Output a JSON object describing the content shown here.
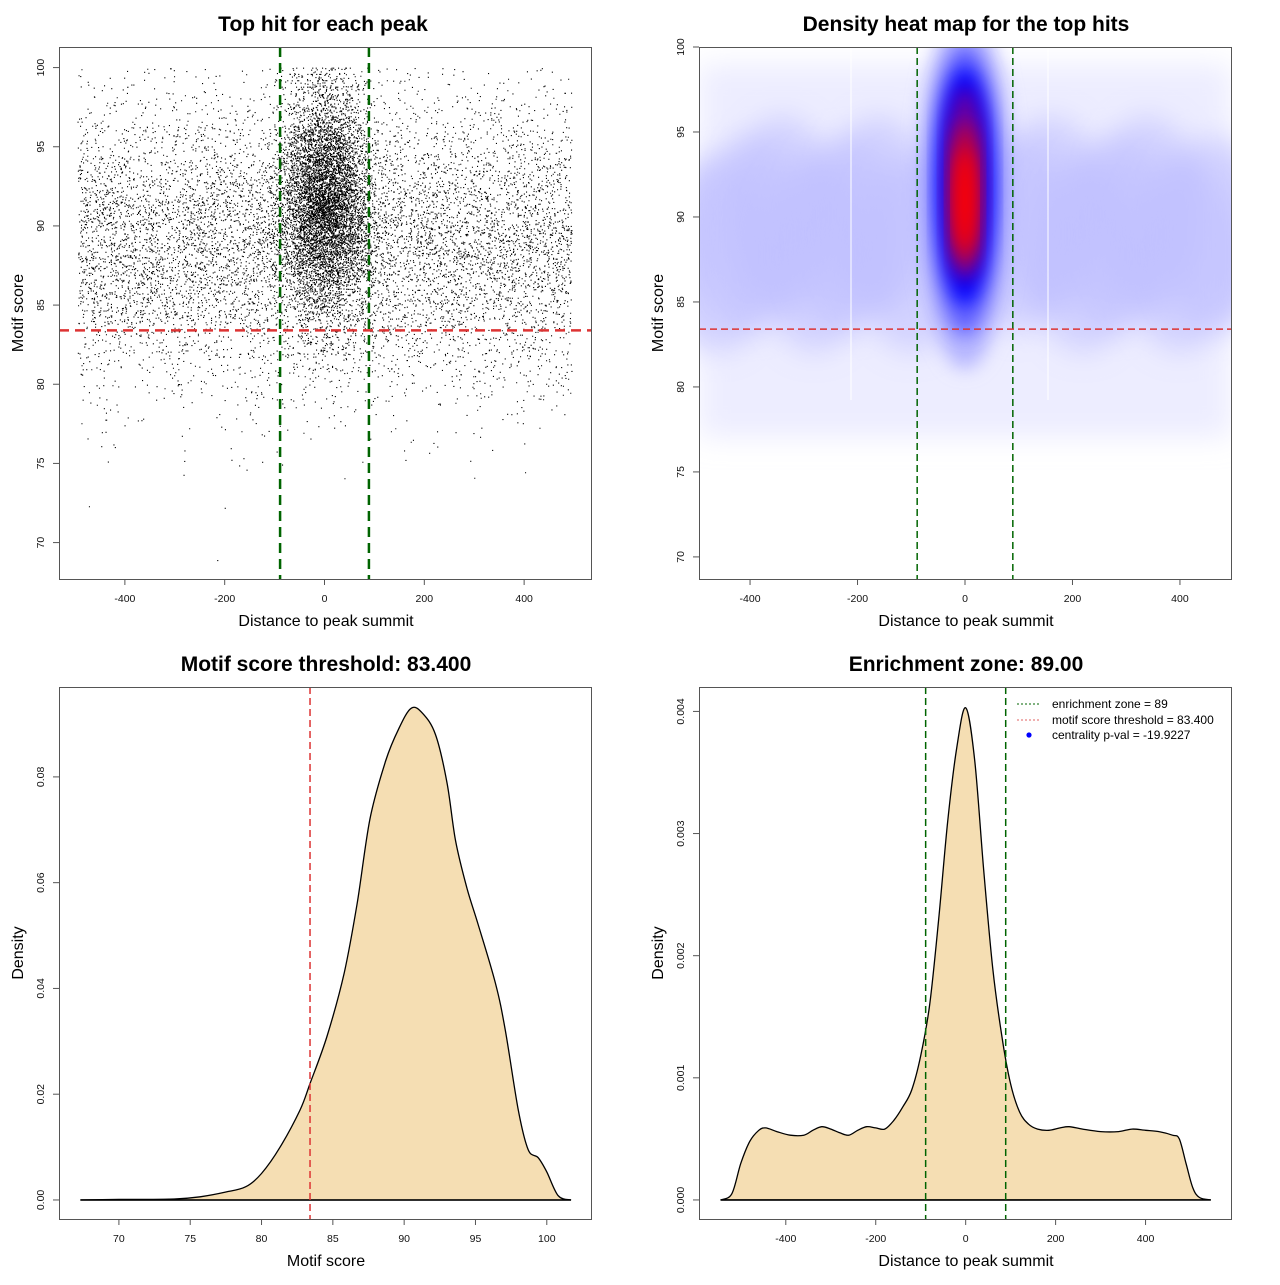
{
  "colors": {
    "green_line": "#006400",
    "red_line": "#dd3333",
    "fill": "#f5deb3",
    "heat_low": "#ffffff",
    "heat_mid": "#0000ff",
    "heat_high": "#ff0000",
    "point": "#000000",
    "legend_dot": "#0000ff"
  },
  "chart_data": [
    {
      "id": "scatter",
      "type": "scatter",
      "title": "Top hit for each peak",
      "xlabel": "Distance to peak summit",
      "ylabel": "Motif score",
      "xlim": [
        -532,
        534
      ],
      "ylim": [
        67.7,
        101.3
      ],
      "xticks": [
        -400,
        -200,
        0,
        200,
        400
      ],
      "xtick_labels": [
        "-400",
        "-200",
        "0",
        "200",
        "400"
      ],
      "yticks": [
        70,
        75,
        80,
        85,
        90,
        95,
        100
      ],
      "ytick_labels": [
        "70",
        "75",
        "80",
        "85",
        "90",
        "95",
        "100"
      ],
      "vlines": [
        -89,
        89
      ],
      "hline": 83.4,
      "point_summary": {
        "x_range": [
          -495,
          495
        ],
        "background_score_mean": 89,
        "background_score_sd": 4.5,
        "central_cluster_x_sd": 45,
        "central_cluster_score_mean": 91.5,
        "central_cluster_score_sd": 3.6,
        "score_max": 100,
        "outliers": [
          [
            -472,
            72.3
          ],
          [
            -200,
            72.2
          ],
          [
            -215,
            68.9
          ],
          [
            300,
            74.1
          ],
          [
            -125,
            75.1
          ]
        ]
      }
    },
    {
      "id": "heatmap",
      "type": "heatmap",
      "title": "Density heat map for the top hits",
      "xlabel": "Distance to peak summit",
      "ylabel": "Motif score",
      "xlim": [
        -495,
        495
      ],
      "ylim": [
        68.7,
        100
      ],
      "xticks": [
        -400,
        -200,
        0,
        200,
        400
      ],
      "xtick_labels": [
        "-400",
        "-200",
        "0",
        "200",
        "400"
      ],
      "yticks": [
        70,
        75,
        80,
        85,
        90,
        95,
        100
      ],
      "ytick_labels": [
        "70",
        "75",
        "80",
        "85",
        "90",
        "95",
        "100"
      ],
      "vlines": [
        -89,
        89
      ],
      "hline": 83.4,
      "hotspot": {
        "x": 0,
        "y": 91,
        "x_sd": 30,
        "y_sd": 3.2
      },
      "background_band": {
        "y_center": 89,
        "y_sd": 5
      },
      "colorscale": [
        "white",
        "blue",
        "red"
      ]
    },
    {
      "id": "score-density",
      "type": "area",
      "title": "Motif score threshold: 83.400",
      "xlabel": "Motif score",
      "ylabel": "Density",
      "xlim": [
        65.8,
        103.1
      ],
      "ylim": [
        -0.0036,
        0.097
      ],
      "xticks": [
        70,
        75,
        80,
        85,
        90,
        95,
        100
      ],
      "xtick_labels": [
        "70",
        "75",
        "80",
        "85",
        "90",
        "95",
        "100"
      ],
      "yticks": [
        0,
        0.02,
        0.04,
        0.06,
        0.08
      ],
      "ytick_labels": [
        "0.00",
        "0.02",
        "0.04",
        "0.06",
        "0.08"
      ],
      "vline": 83.4,
      "x": [
        67.3,
        70,
        72,
        74,
        75.7,
        77.5,
        78.9,
        80.0,
        81.3,
        82.7,
        83.4,
        84.6,
        85.8,
        86.7,
        87.6,
        88.7,
        89.6,
        90.5,
        91.3,
        92.2,
        93.0,
        93.6,
        94.4,
        95.2,
        96.4,
        97.1,
        98.0,
        98.7,
        99.4,
        100.0,
        100.8,
        101.7
      ],
      "y": [
        0,
        0.0001,
        0.0001,
        0.0002,
        0.0006,
        0.0015,
        0.0025,
        0.005,
        0.01,
        0.017,
        0.022,
        0.031,
        0.043,
        0.056,
        0.072,
        0.083,
        0.089,
        0.093,
        0.092,
        0.088,
        0.079,
        0.068,
        0.059,
        0.052,
        0.041,
        0.032,
        0.017,
        0.0095,
        0.008,
        0.0053,
        0.0008,
        0
      ]
    },
    {
      "id": "distance-density",
      "type": "area",
      "title": "Enrichment zone: 89.00",
      "xlabel": "Distance to peak summit",
      "ylabel": "Density",
      "xlim": [
        -593,
        590
      ],
      "ylim": [
        -0.000156,
        0.0042
      ],
      "xticks": [
        -400,
        -200,
        0,
        200,
        400
      ],
      "xtick_labels": [
        "-400",
        "-200",
        "0",
        "200",
        "400"
      ],
      "yticks": [
        0,
        0.001,
        0.002,
        0.003,
        0.004
      ],
      "ytick_labels": [
        "0.000",
        "0.001",
        "0.002",
        "0.003",
        "0.004"
      ],
      "vlines": [
        -89,
        89
      ],
      "x": [
        -545,
        -520,
        -500,
        -480,
        -460,
        -445,
        -420,
        -390,
        -360,
        -340,
        -320,
        -300,
        -280,
        -260,
        -240,
        -220,
        -200,
        -180,
        -160,
        -140,
        -120,
        -100,
        -80,
        -60,
        -40,
        -20,
        0,
        20,
        40,
        60,
        80,
        100,
        120,
        140,
        160,
        185,
        210,
        230,
        260,
        300,
        340,
        370,
        400,
        430,
        460,
        475,
        490,
        505,
        520,
        545
      ],
      "y": [
        0,
        5e-05,
        0.0003,
        0.00048,
        0.00057,
        0.00059,
        0.00056,
        0.00053,
        0.00053,
        0.00057,
        0.0006,
        0.00058,
        0.00055,
        0.00053,
        0.00057,
        0.0006,
        0.00059,
        0.00058,
        0.00065,
        0.00076,
        0.0009,
        0.00118,
        0.0016,
        0.0023,
        0.0031,
        0.0037,
        0.00403,
        0.0036,
        0.0027,
        0.0019,
        0.00135,
        0.00095,
        0.00072,
        0.00062,
        0.00058,
        0.00057,
        0.00059,
        0.0006,
        0.00058,
        0.00056,
        0.00056,
        0.00058,
        0.00057,
        0.00056,
        0.00053,
        0.0005,
        0.0003,
        0.0001,
        2e-05,
        0
      ]
    }
  ],
  "legend": {
    "items": [
      {
        "label": "enrichment zone = 89",
        "style": "dotted-green"
      },
      {
        "label": "motif score threshold = 83.400",
        "style": "dotted-red"
      },
      {
        "label": "centrality p-val = -19.9227",
        "style": "blue-dot"
      }
    ]
  }
}
